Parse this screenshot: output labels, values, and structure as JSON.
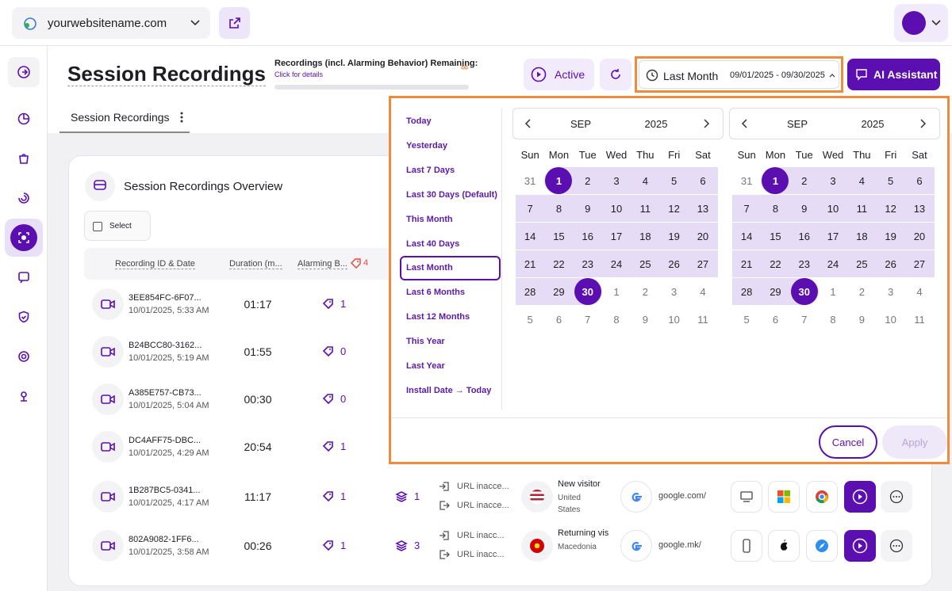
{
  "header": {
    "site": "yourwebsitename.com"
  },
  "toolbar": {
    "title": "Session Recordings",
    "quota_label": "Recordings (incl. Alarming Behavior) Remaining:",
    "quota_value": "∞",
    "quota_link": "Click for details",
    "status": "Active",
    "date_preset": "Last Month",
    "date_range": "09/01/2025 - 09/30/2025",
    "assistant": "AI Assistant"
  },
  "tabs": [
    "Session Recordings"
  ],
  "overview": {
    "title": "Session Recordings Overview",
    "select": "Select",
    "columns": [
      "Recording ID & Date",
      "Duration (m...",
      "Alarming B..."
    ],
    "alarm_total": 4
  },
  "rows": [
    {
      "id": "3EE854FC-6F07...",
      "date": "10/01/2025, 5:33 AM",
      "duration": "01:17",
      "alarms": 1
    },
    {
      "id": "B24BCC80-3162...",
      "date": "10/01/2025, 5:19 AM",
      "duration": "01:55",
      "alarms": 0
    },
    {
      "id": "A385E757-CB73...",
      "date": "10/01/2025, 5:04 AM",
      "duration": "00:30",
      "alarms": 0
    },
    {
      "id": "DC4AFF75-DBC...",
      "date": "10/01/2025, 4:29 AM",
      "duration": "20:54",
      "alarms": 1
    },
    {
      "id": "1B287BC5-0341...",
      "date": "10/01/2025, 4:17 AM",
      "duration": "11:17",
      "alarms": 1,
      "pages": 1,
      "entry": "URL inacce...",
      "exit": "URL inacce...",
      "visitor": "New visitor",
      "location": "United States",
      "source": "google.com/"
    },
    {
      "id": "802A9082-1FF6...",
      "date": "10/01/2025, 3:58 AM",
      "duration": "00:26",
      "alarms": 1,
      "pages": 3,
      "entry": "URL inacc...",
      "exit": "URL inacc...",
      "visitor": "Returning vis",
      "location": "Macedonia",
      "source": "google.mk/"
    }
  ],
  "date_picker": {
    "presets": [
      "Today",
      "Yesterday",
      "Last 7 Days",
      "Last 30 Days (Default)",
      "This Month",
      "Last 40 Days",
      "Last Month",
      "Last 6 Months",
      "Last 12 Months",
      "This Year",
      "Last Year",
      "Install Date → Today"
    ],
    "calendars": [
      {
        "month": "SEP",
        "year": "2025",
        "weekdays": [
          "Sun",
          "Mon",
          "Tue",
          "Wed",
          "Thu",
          "Fri",
          "Sat"
        ],
        "weeks": [
          [
            31,
            1,
            2,
            3,
            4,
            5,
            6
          ],
          [
            7,
            8,
            9,
            10,
            11,
            12,
            13
          ],
          [
            14,
            15,
            16,
            17,
            18,
            19,
            20
          ],
          [
            21,
            22,
            23,
            24,
            25,
            26,
            27
          ],
          [
            28,
            29,
            30,
            1,
            2,
            3,
            4
          ],
          [
            5,
            6,
            7,
            8,
            9,
            10,
            11
          ]
        ]
      },
      {
        "month": "SEP",
        "year": "2025",
        "weekdays": [
          "Sun",
          "Mon",
          "Tue",
          "Wed",
          "Thu",
          "Fri",
          "Sat"
        ],
        "weeks": [
          [
            31,
            1,
            2,
            3,
            4,
            5,
            6
          ],
          [
            7,
            8,
            9,
            10,
            11,
            12,
            13
          ],
          [
            14,
            15,
            16,
            17,
            18,
            19,
            20
          ],
          [
            21,
            22,
            23,
            24,
            25,
            26,
            27
          ],
          [
            28,
            29,
            30,
            1,
            2,
            3,
            4
          ],
          [
            5,
            6,
            7,
            8,
            9,
            10,
            11
          ]
        ]
      }
    ],
    "cancel": "Cancel",
    "apply": "Apply"
  }
}
